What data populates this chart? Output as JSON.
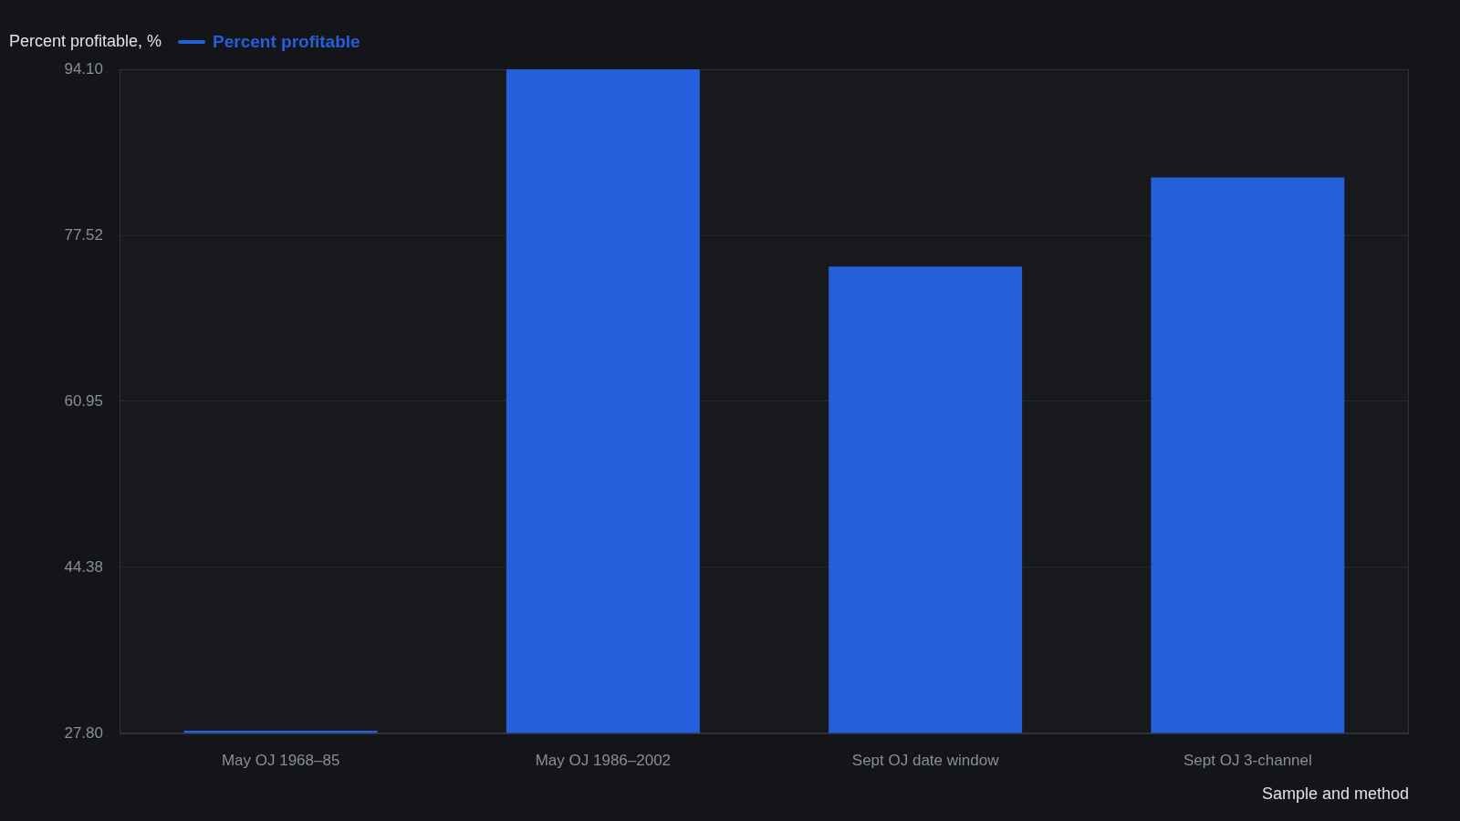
{
  "chart_data": {
    "type": "bar",
    "ylabel": "Percent profitable, %",
    "xlabel": "Sample and method",
    "categories": [
      "May OJ 1968–85",
      "May OJ 1986–2002",
      "Sept OJ date window",
      "Sept OJ 3-channel"
    ],
    "series": [
      {
        "name": "Percent profitable",
        "color": "#2560dc",
        "values": [
          27.8,
          94.1,
          74.4,
          83.3
        ]
      }
    ],
    "ylim": [
      27.8,
      94.1
    ],
    "yticks": [
      {
        "value": 27.8,
        "label": "27.80"
      },
      44.38,
      60.95,
      77.52,
      {
        "value": 94.1,
        "label": "94.10"
      }
    ],
    "grid": "y",
    "legend": "top left"
  }
}
